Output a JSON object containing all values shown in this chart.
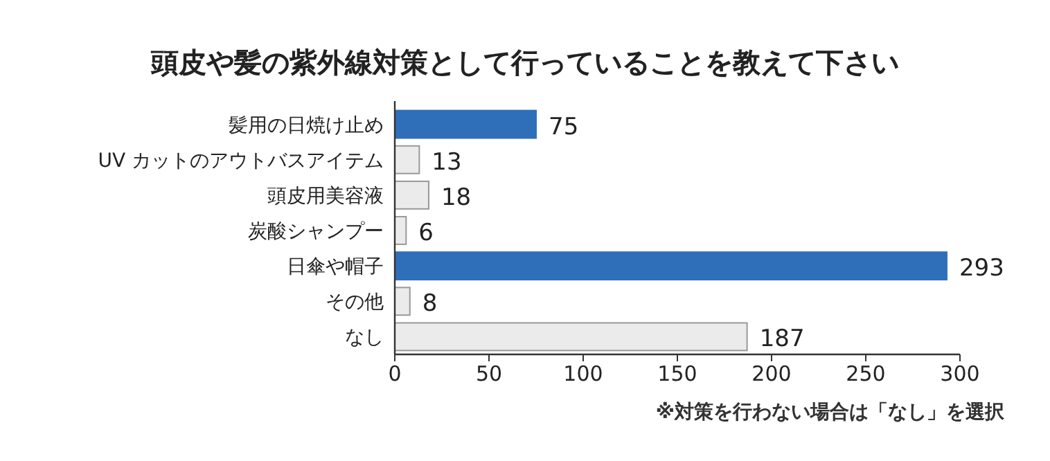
{
  "chart_data": {
    "type": "bar",
    "orientation": "horizontal",
    "title": "頭皮や髪の紫外線対策として行っていることを教えて下さい",
    "categories": [
      "髪用の日焼け止め",
      "UV カットのアウトバスアイテム",
      "頭皮用美容液",
      "炭酸シャンプー",
      "日傘や帽子",
      "その他",
      "なし"
    ],
    "values": [
      75,
      13,
      18,
      6,
      293,
      8,
      187
    ],
    "colors": [
      "#2f6fba",
      "#ebebeb",
      "#ebebeb",
      "#ebebeb",
      "#2f6fba",
      "#ebebeb",
      "#ebebeb"
    ],
    "xlim": [
      0,
      300
    ],
    "xticks": [
      0,
      50,
      100,
      150,
      200,
      250,
      300
    ],
    "data_labels": true,
    "grid": false,
    "annotations": [
      "※対策を行わない場合は「なし」を選択"
    ]
  }
}
